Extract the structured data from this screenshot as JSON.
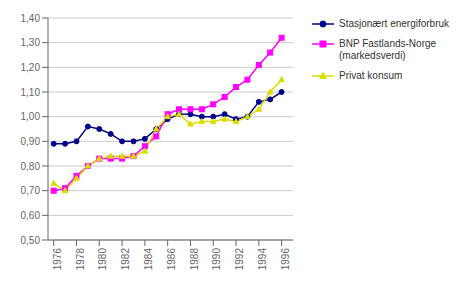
{
  "chart_data": {
    "type": "line",
    "x": [
      1976,
      1977,
      1978,
      1979,
      1980,
      1981,
      1982,
      1983,
      1984,
      1985,
      1986,
      1987,
      1988,
      1989,
      1990,
      1991,
      1992,
      1993,
      1994,
      1995,
      1996
    ],
    "xlim": [
      1975.5,
      1997.0
    ],
    "xticks": [
      1976,
      1978,
      1980,
      1982,
      1984,
      1986,
      1988,
      1990,
      1992,
      1994,
      1996
    ],
    "ylim": [
      0.5,
      1.4
    ],
    "yticks": [
      {
        "value": 0.5,
        "label": "0,50"
      },
      {
        "value": 0.6,
        "label": "0,60"
      },
      {
        "value": 0.7,
        "label": "0,70"
      },
      {
        "value": 0.8,
        "label": "0,80"
      },
      {
        "value": 0.9,
        "label": "0,90"
      },
      {
        "value": 1.0,
        "label": "1,00"
      },
      {
        "value": 1.1,
        "label": "1,10"
      },
      {
        "value": 1.2,
        "label": "1,20"
      },
      {
        "value": 1.3,
        "label": "1,30"
      },
      {
        "value": 1.4,
        "label": "1,40"
      }
    ],
    "grid": true,
    "legend": "right",
    "series": [
      {
        "name": "Stasjonært energiforbruk",
        "color": "#00008B",
        "marker": "circle",
        "values": [
          0.89,
          0.89,
          0.9,
          0.96,
          0.95,
          0.93,
          0.9,
          0.9,
          0.91,
          0.95,
          0.99,
          1.01,
          1.01,
          1.0,
          1.0,
          1.01,
          0.99,
          1.0,
          1.06,
          1.07,
          1.1
        ]
      },
      {
        "name": "BNP Fastlands-Norge\n(markedsverdi)",
        "color": "#FF00FF",
        "marker": "square",
        "values": [
          0.7,
          0.71,
          0.76,
          0.8,
          0.83,
          0.83,
          0.83,
          0.84,
          0.88,
          0.92,
          1.01,
          1.03,
          1.03,
          1.03,
          1.05,
          1.08,
          1.12,
          1.15,
          1.21,
          1.26,
          1.32
        ]
      },
      {
        "name": "Privat konsum",
        "color": "#DDDD00",
        "marker": "triangle",
        "values": [
          0.73,
          0.7,
          0.75,
          0.8,
          0.83,
          0.84,
          0.84,
          0.84,
          0.86,
          0.95,
          1.0,
          1.01,
          0.97,
          0.98,
          0.98,
          0.99,
          0.98,
          1.0,
          1.03,
          1.1,
          1.15
        ]
      }
    ]
  }
}
